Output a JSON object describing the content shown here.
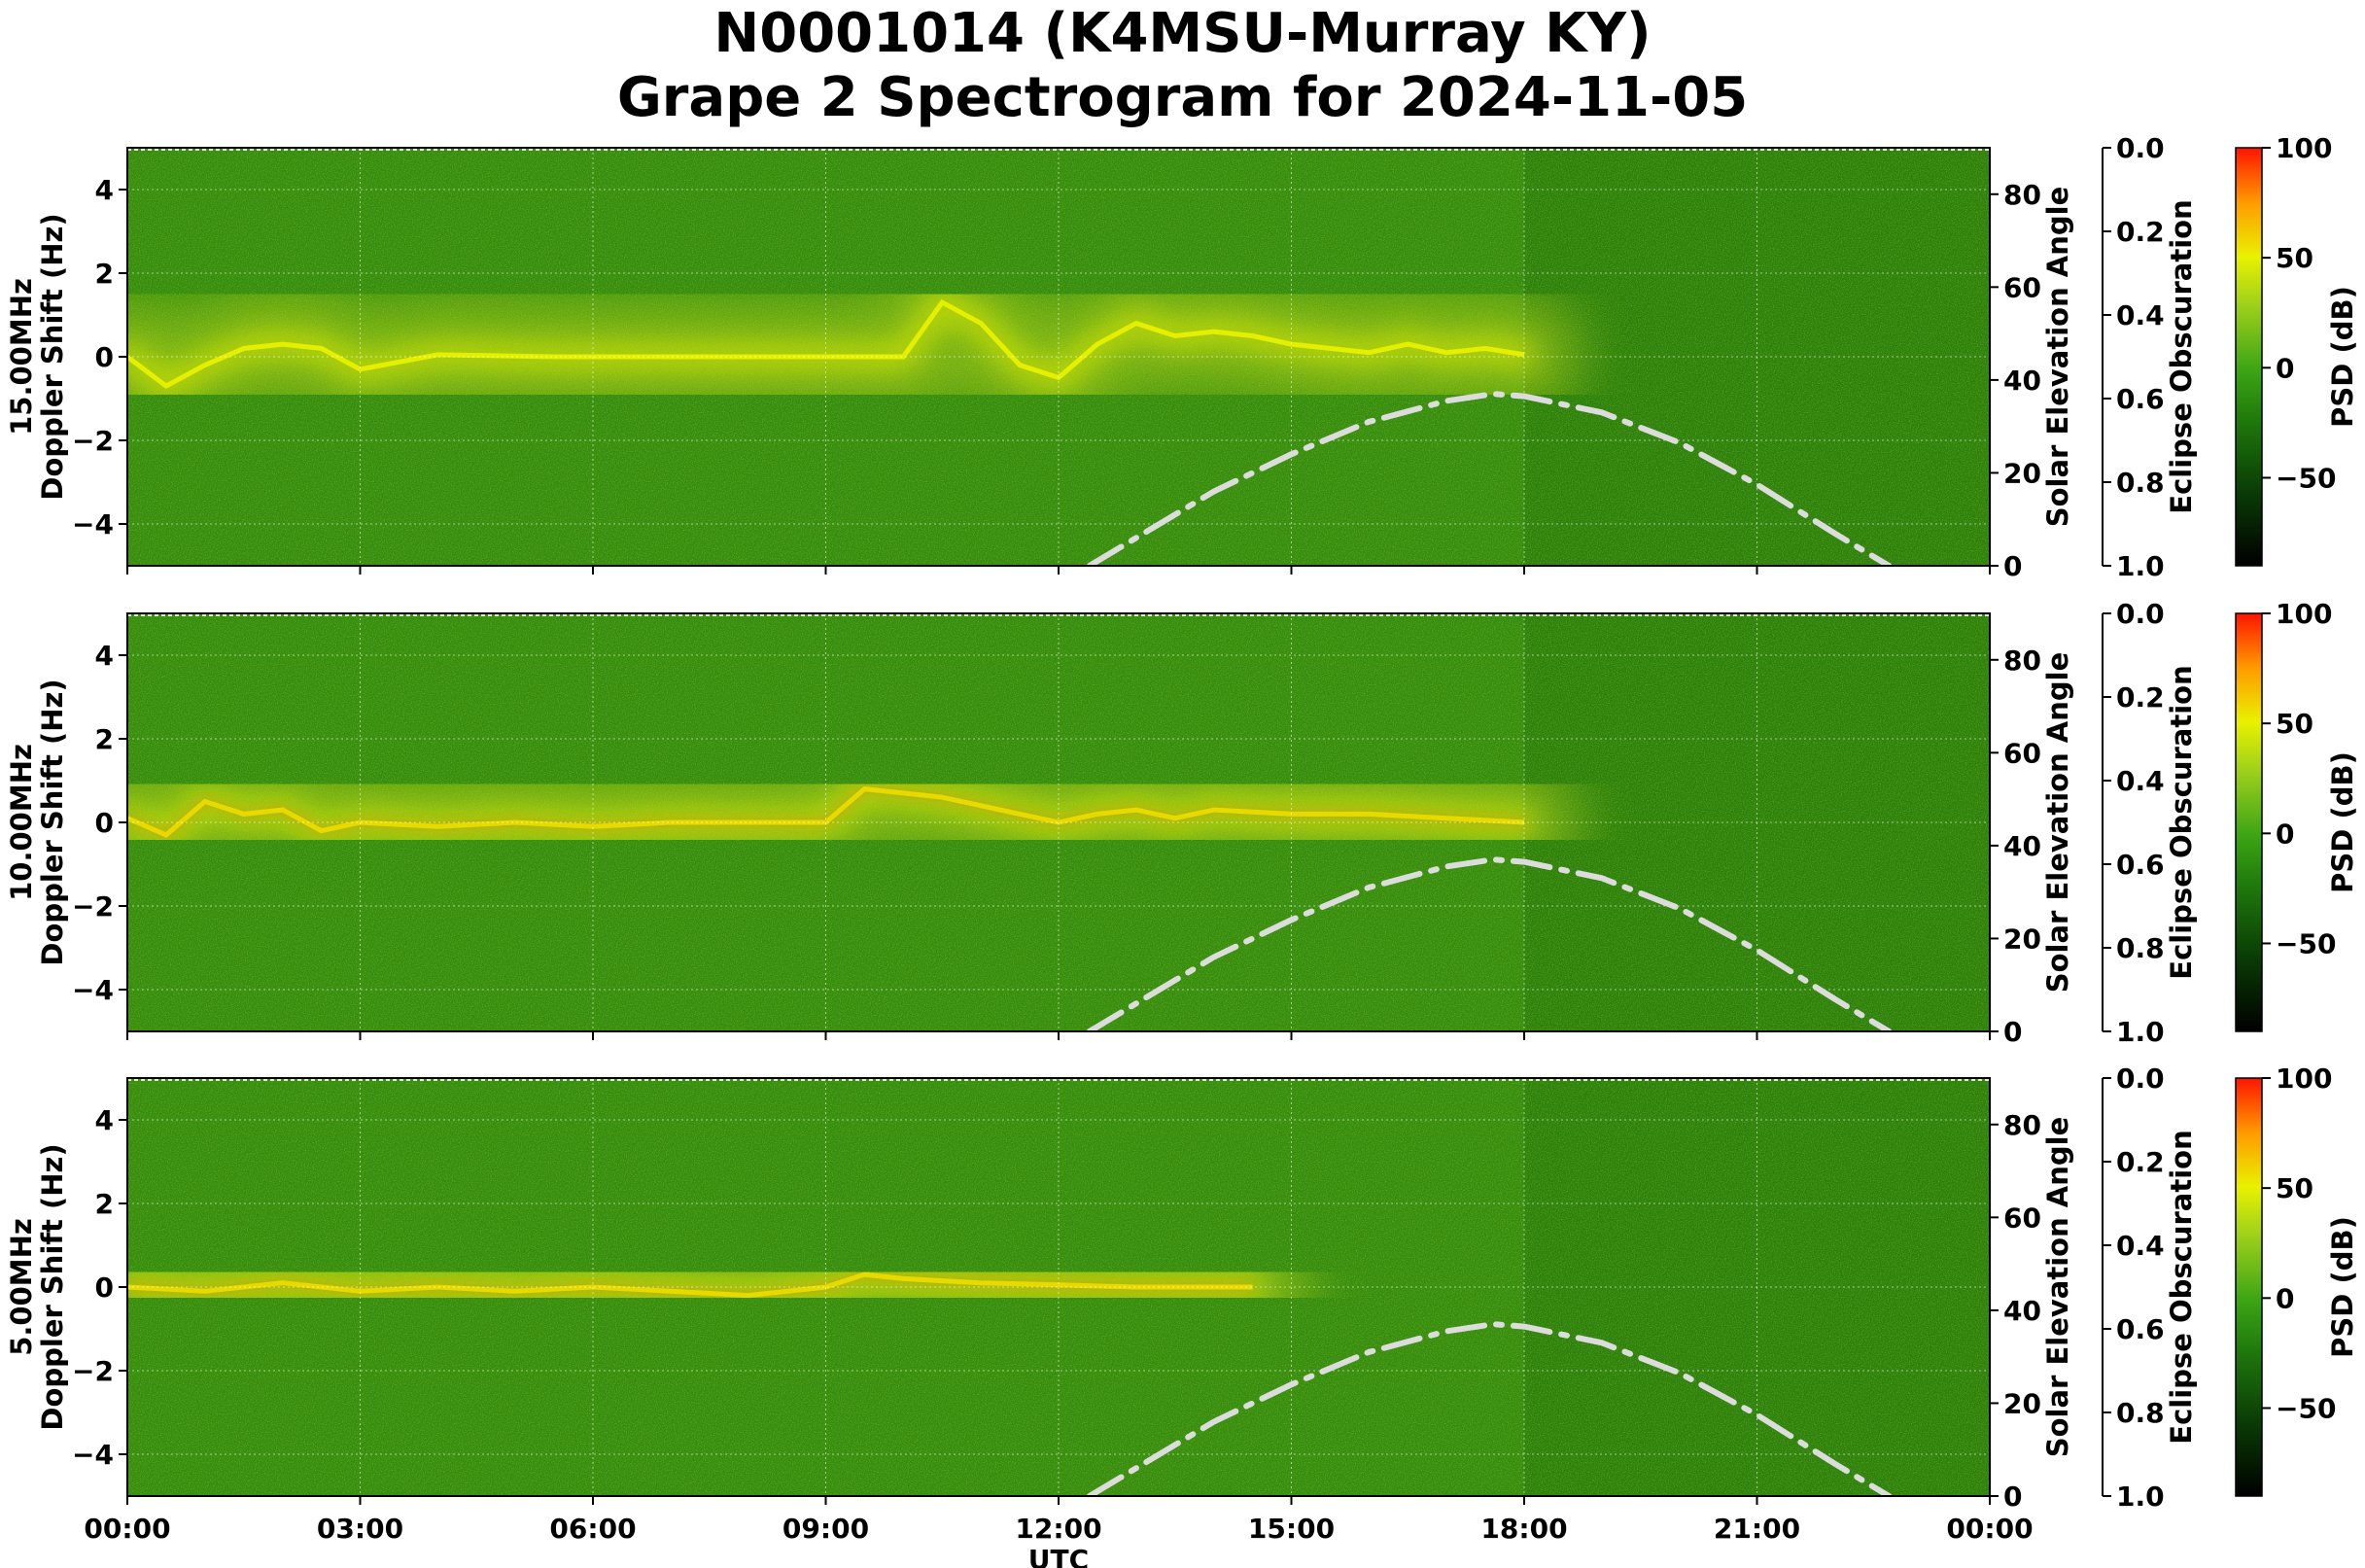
{
  "title_line1": "N0001014 (K4MSU-Murray KY)",
  "title_line2": "Grape 2 Spectrogram for 2024-11-05",
  "colors": {
    "background_green": "#2a7f0d",
    "signal_yellow": "#e8f000",
    "peak_red": "#ff2a00",
    "solar_curve": "#dcdcdc"
  },
  "chart_data": [
    {
      "type": "heatmap",
      "band_label": "15.00MHz",
      "ylabel": "Doppler Shift (Hz)",
      "xlabel": "",
      "xlim_hours": [
        0,
        24
      ],
      "ylim": [
        -5,
        5
      ],
      "yticks": [
        -4,
        -2,
        0,
        2,
        4
      ],
      "colorbar": {
        "label": "PSD (dB)",
        "range": [
          -90,
          100
        ],
        "ticks": [
          100,
          50,
          0,
          -50
        ],
        "tick_labels": [
          "100",
          "50",
          "0",
          "−50"
        ]
      },
      "solar_axis": {
        "label": "Solar Elevation Angle",
        "ylim": [
          0,
          90
        ],
        "ticks": [
          0,
          20,
          40,
          60,
          80
        ]
      },
      "eclipse_axis": {
        "label": "Eclipse Obscuration",
        "ylim": [
          1.0,
          0.0
        ],
        "ticks": [
          "0.0",
          "0.2",
          "0.4",
          "0.6",
          "0.8",
          "1.0"
        ]
      },
      "grid": true,
      "carrier_trace": {
        "hours": [
          0,
          0.5,
          1,
          1.5,
          2,
          2.5,
          3,
          4,
          5.5,
          6,
          8,
          10,
          10.5,
          11,
          11.5,
          12,
          12.5,
          13,
          13.5,
          14,
          14.5,
          15,
          15.5,
          16,
          16.5,
          17,
          17.5,
          18
        ],
        "doppler_hz": [
          0,
          -0.7,
          -0.2,
          0.2,
          0.3,
          0.2,
          -0.3,
          0.05,
          0,
          0,
          0,
          0,
          1.3,
          0.8,
          -0.2,
          -0.5,
          0.3,
          0.8,
          0.5,
          0.6,
          0.5,
          0.3,
          0.2,
          0.1,
          0.3,
          0.1,
          0.2,
          0.05
        ]
      },
      "solar_elevation": {
        "hours": [
          12.4,
          13,
          14,
          15,
          16,
          17,
          17.6,
          18,
          19,
          20,
          21,
          22,
          22.7
        ],
        "degrees": [
          0,
          6,
          16,
          24,
          31,
          35.5,
          37,
          36.5,
          33,
          26.5,
          17.5,
          7,
          0
        ]
      }
    },
    {
      "type": "heatmap",
      "band_label": "10.00MHz",
      "ylabel": "Doppler Shift (Hz)",
      "xlabel": "",
      "xlim_hours": [
        0,
        24
      ],
      "ylim": [
        -5,
        5
      ],
      "yticks": [
        -4,
        -2,
        0,
        2,
        4
      ],
      "colorbar": {
        "label": "PSD (dB)",
        "range": [
          -90,
          100
        ],
        "ticks": [
          100,
          50,
          0,
          -50
        ],
        "tick_labels": [
          "100",
          "50",
          "0",
          "−50"
        ]
      },
      "solar_axis": {
        "label": "Solar Elevation Angle",
        "ylim": [
          0,
          90
        ],
        "ticks": [
          0,
          20,
          40,
          60,
          80
        ]
      },
      "eclipse_axis": {
        "label": "Eclipse Obscuration",
        "ylim": [
          1.0,
          0.0
        ],
        "ticks": [
          "0.0",
          "0.2",
          "0.4",
          "0.6",
          "0.8",
          "1.0"
        ]
      },
      "grid": true,
      "carrier_trace": {
        "hours": [
          0,
          0.5,
          1,
          1.5,
          2,
          2.5,
          3,
          4,
          5,
          6,
          7,
          8,
          9,
          9.5,
          10,
          10.5,
          11,
          11.5,
          12,
          12.5,
          13,
          13.5,
          14,
          15,
          16,
          17,
          18
        ],
        "doppler_hz": [
          0.1,
          -0.3,
          0.5,
          0.2,
          0.3,
          -0.2,
          0,
          -0.1,
          0,
          -0.1,
          0,
          0,
          0,
          0.8,
          0.7,
          0.6,
          0.4,
          0.2,
          0,
          0.2,
          0.3,
          0.1,
          0.3,
          0.2,
          0.2,
          0.1,
          0
        ]
      },
      "solar_elevation": {
        "hours": [
          12.4,
          13,
          14,
          15,
          16,
          17,
          17.6,
          18,
          19,
          20,
          21,
          22,
          22.7
        ],
        "degrees": [
          0,
          6,
          16,
          24,
          31,
          35.5,
          37,
          36.5,
          33,
          26.5,
          17.5,
          7,
          0
        ]
      }
    },
    {
      "type": "heatmap",
      "band_label": "5.00MHz",
      "ylabel": "Doppler Shift (Hz)",
      "xlabel": "UTC",
      "xlim_hours": [
        0,
        24
      ],
      "ylim": [
        -5,
        5
      ],
      "yticks": [
        -4,
        -2,
        0,
        2,
        4
      ],
      "xticks": [
        "00:00",
        "03:00",
        "06:00",
        "09:00",
        "12:00",
        "15:00",
        "18:00",
        "21:00",
        "00:00"
      ],
      "colorbar": {
        "label": "PSD (dB)",
        "range": [
          -90,
          100
        ],
        "ticks": [
          100,
          50,
          0,
          -50
        ],
        "tick_labels": [
          "100",
          "50",
          "0",
          "−50"
        ]
      },
      "solar_axis": {
        "label": "Solar Elevation Angle",
        "ylim": [
          0,
          90
        ],
        "ticks": [
          0,
          20,
          40,
          60,
          80
        ]
      },
      "eclipse_axis": {
        "label": "Eclipse Obscuration",
        "ylim": [
          1.0,
          0.0
        ],
        "ticks": [
          "0.0",
          "0.2",
          "0.4",
          "0.6",
          "0.8",
          "1.0"
        ]
      },
      "grid": true,
      "carrier_trace": {
        "hours": [
          0,
          1,
          2,
          3,
          4,
          5,
          6,
          7,
          8,
          9,
          9.5,
          10,
          11,
          12,
          13,
          14,
          14.5
        ],
        "doppler_hz": [
          0,
          -0.1,
          0.1,
          -0.1,
          0,
          -0.1,
          0,
          -0.1,
          -0.2,
          0,
          0.3,
          0.2,
          0.1,
          0.05,
          0,
          0,
          0
        ]
      },
      "solar_elevation": {
        "hours": [
          12.4,
          13,
          14,
          15,
          16,
          17,
          17.6,
          18,
          19,
          20,
          21,
          22,
          22.7
        ],
        "degrees": [
          0,
          6,
          16,
          24,
          31,
          35.5,
          37,
          36.5,
          33,
          26.5,
          17.5,
          7,
          0
        ]
      }
    }
  ]
}
